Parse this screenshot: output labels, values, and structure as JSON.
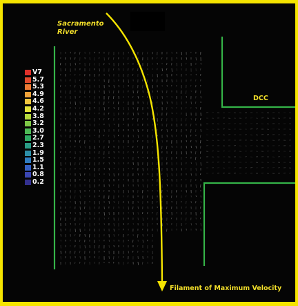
{
  "labels": {
    "river": [
      "Sacramento",
      "River"
    ],
    "channel": "DCC",
    "filament": "Filament of Maximum Velocity"
  },
  "legend": {
    "items": [
      {
        "label": "V7",
        "color": "#e0302a"
      },
      {
        "label": "5.7",
        "color": "#e24a2c"
      },
      {
        "label": "5.3",
        "color": "#ec7a34"
      },
      {
        "label": "4.9",
        "color": "#f0a23a"
      },
      {
        "label": "4.6",
        "color": "#f2c63e"
      },
      {
        "label": "4.2",
        "color": "#e4e23a"
      },
      {
        "label": "3.8",
        "color": "#b4d83c"
      },
      {
        "label": "3.2",
        "color": "#7dc847"
      },
      {
        "label": "3.0",
        "color": "#4cb955"
      },
      {
        "label": "2.7",
        "color": "#2ea964"
      },
      {
        "label": "2.3",
        "color": "#2a9c86"
      },
      {
        "label": "1.9",
        "color": "#2d8fa8"
      },
      {
        "label": "1.5",
        "color": "#2f7cc0"
      },
      {
        "label": "1.1",
        "color": "#3560c4"
      },
      {
        "label": "0.8",
        "color": "#3a46b2"
      },
      {
        "label": "0.2",
        "color": "#33308f"
      }
    ]
  },
  "colors": {
    "frame": "#f5e400",
    "background": "#050505",
    "bank_lines": "#35b448",
    "flow_arrow": "#f5e400",
    "vector_field": "#8e8e8e"
  }
}
